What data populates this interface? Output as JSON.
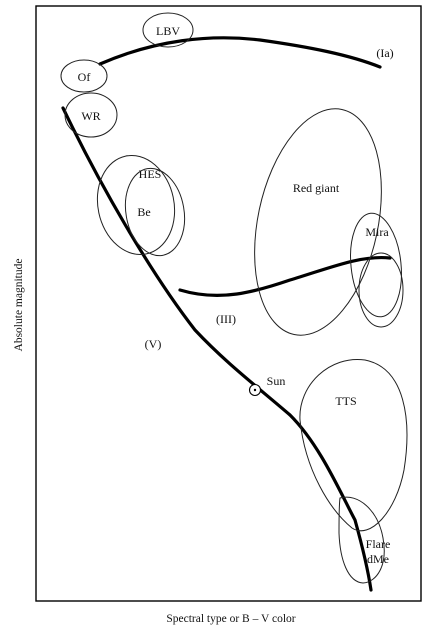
{
  "diagram": {
    "x_axis_label": "Spectral type or B – V color",
    "y_axis_label": "Absolute magnitude",
    "branches": [
      {
        "id": "ia",
        "label": "(Ia)"
      },
      {
        "id": "iii",
        "label": "(III)"
      },
      {
        "id": "v",
        "label": "(V)"
      }
    ],
    "regions": [
      {
        "id": "lbv",
        "label": "LBV"
      },
      {
        "id": "of",
        "label": "Of"
      },
      {
        "id": "wr",
        "label": "WR"
      },
      {
        "id": "hes",
        "label": "HES"
      },
      {
        "id": "be",
        "label": "Be"
      },
      {
        "id": "red-giant",
        "label": "Red giant"
      },
      {
        "id": "mira",
        "label": "Mira"
      },
      {
        "id": "tts",
        "label": "TTS"
      },
      {
        "id": "flare",
        "label": "Flare"
      },
      {
        "id": "dme",
        "label": "dMe"
      }
    ],
    "sun": {
      "label": "Sun",
      "symbol": "sun-symbol"
    }
  }
}
